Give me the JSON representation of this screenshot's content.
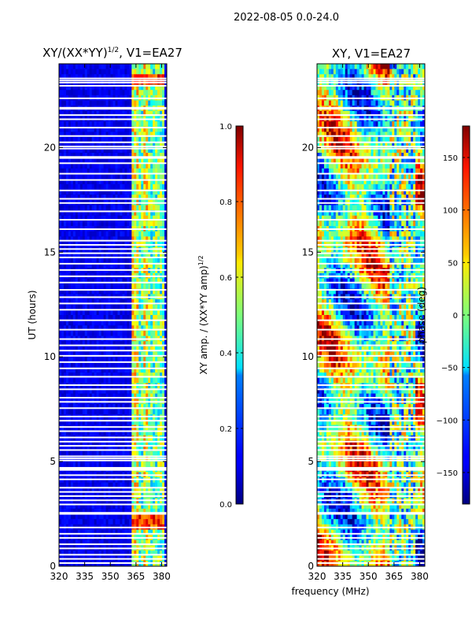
{
  "suptitle": "2022-08-05 0.0-24.0",
  "chart_data": [
    {
      "type": "heatmap",
      "title_prefix": "XY/(XX*YY)",
      "title_sup": "1/2",
      "title_suffix": ", V1=EA27",
      "ylabel": "UT (hours)",
      "xlabel": "",
      "xlim": [
        320,
        383
      ],
      "ylim": [
        0,
        24
      ],
      "xticks": [
        320,
        335,
        350,
        365,
        380
      ],
      "yticks": [
        0,
        5,
        10,
        15,
        20
      ],
      "colorbar": {
        "label_main": "XY amp. / (XX*YY amp)",
        "label_sup": "1/2",
        "range": [
          0.0,
          1.0
        ],
        "ticks": [
          "0.0",
          "0.2",
          "0.4",
          "0.6",
          "0.8",
          "1.0"
        ],
        "tick_values": [
          0.0,
          0.2,
          0.4,
          0.6,
          0.8,
          1.0
        ]
      },
      "colormap": "jet",
      "description_values": "mostly low (~0.1) below 360 MHz; elevated (0.3-0.8) in the 360-380 MHz band"
    },
    {
      "type": "heatmap",
      "title": "XY, V1=EA27",
      "xlabel": "frequency (MHz)",
      "ylabel": "",
      "xlim": [
        320,
        383
      ],
      "ylim": [
        0,
        24
      ],
      "xticks": [
        320,
        335,
        350,
        365,
        380
      ],
      "yticks": [
        0,
        5,
        10,
        15,
        20
      ],
      "colorbar": {
        "label": "phase (deg)",
        "range": [
          -180,
          180
        ],
        "ticks": [
          "−150",
          "−100",
          "−50",
          "0",
          "50",
          "100",
          "150"
        ],
        "tick_values": [
          -150,
          -100,
          -50,
          0,
          50,
          100,
          150
        ]
      },
      "colormap": "jet"
    }
  ],
  "flagged_hours": [
    0.15,
    0.35,
    0.55,
    0.85,
    1.05,
    1.35,
    1.55,
    1.85,
    2.5,
    2.55,
    2.95,
    3.15,
    3.35,
    3.55,
    3.75,
    4.15,
    4.35,
    4.6,
    4.65,
    4.7,
    5.05,
    5.15,
    5.25,
    5.55,
    5.75,
    5.95,
    6.15,
    6.45,
    6.65,
    6.95,
    7.15,
    7.55,
    7.85,
    8.05,
    8.45,
    8.65,
    9.05,
    9.45,
    9.75,
    10.05,
    10.3,
    10.55,
    10.85,
    11.3,
    11.75,
    12.25,
    12.55,
    12.85,
    13.2,
    13.55,
    13.85,
    14.15,
    14.45,
    14.75,
    14.95,
    15.15,
    15.35,
    15.55,
    16.1,
    16.55,
    16.95,
    17.35,
    17.55,
    17.95,
    18.45,
    18.75,
    19.25,
    19.5,
    19.55,
    19.95,
    20.05,
    20.25,
    20.55,
    20.95,
    21.35,
    21.55,
    21.85,
    21.9,
    22.35,
    22.95,
    23.1,
    23.2,
    23.3
  ]
}
